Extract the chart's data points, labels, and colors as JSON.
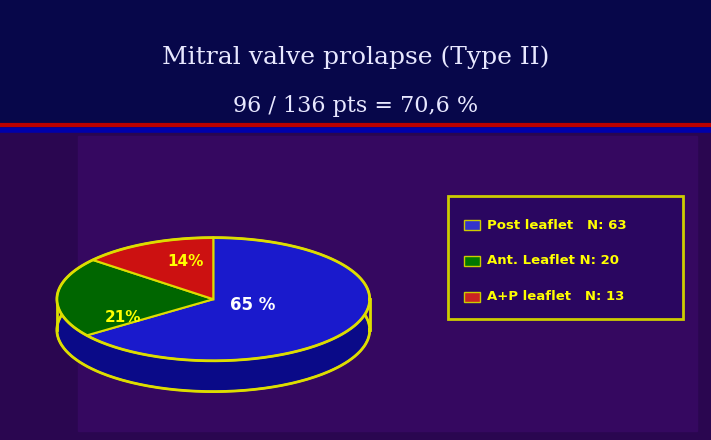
{
  "title_line1": "Mitral valve prolapse (Type II)",
  "title_line2": "96 / 136 pts = 70,6 %",
  "bg_top_color": "#07074a",
  "bg_bottom_color": "#2a0650",
  "inner_panel_color": "#350860",
  "separator_color": "#bb0000",
  "pie_values": [
    65,
    21,
    14
  ],
  "pie_colors": [
    "#1a1acc",
    "#006600",
    "#cc1111"
  ],
  "pie_dark_colors": [
    "#0a0a88",
    "#003300",
    "#881111"
  ],
  "pie_edge_color": "#dddd00",
  "pie_label_texts": [
    "65 %",
    "21%",
    "14%"
  ],
  "pie_label_colors": [
    "#ffffff",
    "#ffff00",
    "#ffff00"
  ],
  "legend_labels": [
    "Post leaflet   N: 63",
    "Ant. Leaflet N: 20",
    "A+P leaflet   N: 13"
  ],
  "legend_colors": [
    "#3333cc",
    "#007700",
    "#cc2222"
  ],
  "legend_text_color": "#ffff00",
  "legend_bg_color": "#2a0660",
  "legend_edge_color": "#cccc00",
  "title_color": "#e8e8ff",
  "title_fontsize": 18,
  "subtitle_fontsize": 16
}
